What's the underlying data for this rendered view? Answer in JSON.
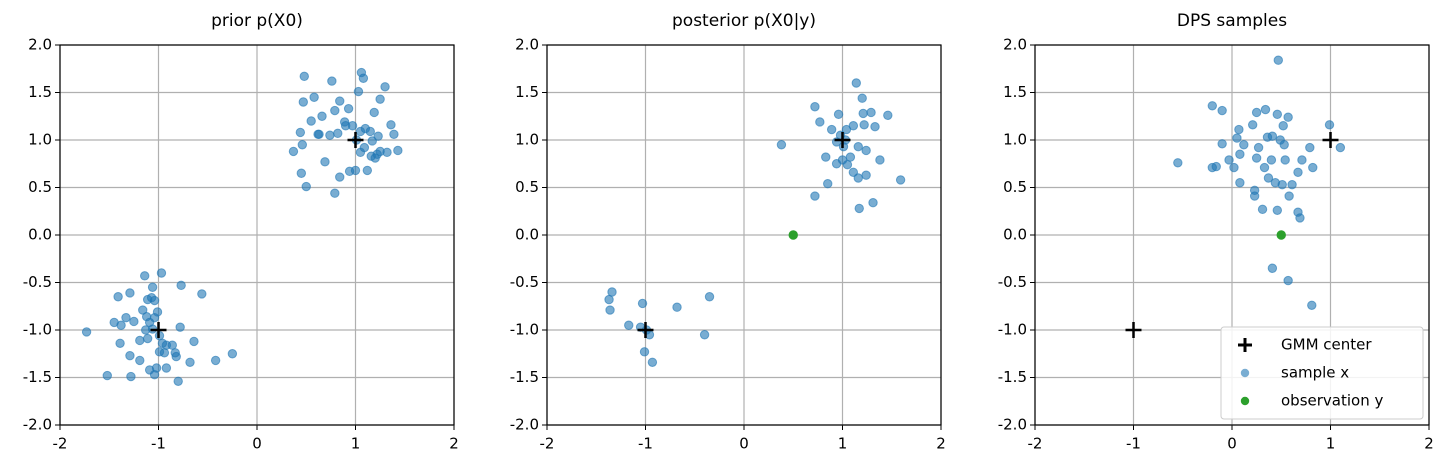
{
  "chart_data": [
    {
      "type": "scatter",
      "title": "prior p(X0)",
      "xlim": [
        -2,
        2
      ],
      "ylim": [
        -2,
        2
      ],
      "xticks": [
        -2,
        -1,
        0,
        1,
        2
      ],
      "yticks": [
        {
          "value": -2,
          "label": "-2.0"
        },
        -1.5,
        {
          "value": -1,
          "label": "-1.0"
        },
        -0.5,
        {
          "value": 0,
          "label": "0.0"
        },
        0.5,
        {
          "value": 1,
          "label": "1.0"
        },
        1.5,
        {
          "value": 2,
          "label": "2.0"
        }
      ],
      "grid": true,
      "series": [
        {
          "color": "#1f77b4",
          "marker": "circle",
          "alpha": 0.6,
          "x": [
            0.48,
            0.47,
            0.58,
            0.76,
            1.06,
            1.08,
            1.3,
            1.25,
            1.03,
            0.84,
            0.93,
            1.19,
            0.44,
            0.55,
            0.66,
            0.79,
            0.9,
            0.82,
            0.74,
            0.63,
            0.89,
            0.97,
            1.05,
            1.1,
            1.15,
            1.23,
            1.17,
            1.36,
            1.39,
            1.43,
            1.32,
            1.22,
            1.09,
            1.01,
            1.05,
            1.16,
            1.25,
            1.2,
            1.12,
            1.0,
            0.94,
            0.84,
            0.79,
            0.69,
            0.45,
            0.5,
            0.37,
            0.46,
            0.62,
            -1.14,
            -0.97,
            -1.41,
            -1.29,
            -1.06,
            -1.07,
            -1.11,
            -1.04,
            -0.77,
            -0.56,
            -1.45,
            -1.33,
            -1.38,
            -1.25,
            -1.16,
            -1.12,
            -1.09,
            -1.13,
            -1.06,
            -0.99,
            -0.78,
            -1.73,
            -1.39,
            -1.19,
            -0.96,
            -0.92,
            -0.99,
            -0.94,
            -0.64,
            -0.82,
            -0.83,
            -0.68,
            -1.19,
            -1.09,
            -1.02,
            -0.92,
            -1.52,
            -1.28,
            -1.04,
            -0.8,
            -0.42,
            -0.25,
            -1.29,
            -1.11,
            -0.86,
            -1.04,
            -1.01
          ],
          "y": [
            1.67,
            1.4,
            1.45,
            1.62,
            1.71,
            1.65,
            1.56,
            1.43,
            1.51,
            1.41,
            1.33,
            1.29,
            1.08,
            1.2,
            1.25,
            1.31,
            1.15,
            1.07,
            1.05,
            1.06,
            1.19,
            1.15,
            1.09,
            1.12,
            1.09,
            1.04,
            0.99,
            1.16,
            1.06,
            0.89,
            0.87,
            0.85,
            0.92,
            1.0,
            0.87,
            0.83,
            0.88,
            0.81,
            0.68,
            0.68,
            0.67,
            0.61,
            0.44,
            0.77,
            0.65,
            0.51,
            0.88,
            0.95,
            1.06,
            -0.43,
            -0.4,
            -0.65,
            -0.61,
            -0.55,
            -0.66,
            -0.68,
            -0.69,
            -0.53,
            -0.62,
            -0.92,
            -0.87,
            -0.95,
            -0.91,
            -0.79,
            -0.86,
            -0.92,
            -1.0,
            -0.99,
            -1.06,
            -0.97,
            -1.02,
            -1.14,
            -1.11,
            -1.14,
            -1.16,
            -1.23,
            -1.24,
            -1.12,
            -1.28,
            -1.24,
            -1.34,
            -1.32,
            -1.42,
            -1.4,
            -1.4,
            -1.48,
            -1.49,
            -1.47,
            -1.54,
            -1.32,
            -1.25,
            -1.27,
            -1.09,
            -1.16,
            -0.87,
            -0.81
          ]
        },
        {
          "color": "#000000",
          "marker": "plus",
          "x": [
            -1,
            1
          ],
          "y": [
            -1,
            1
          ]
        }
      ]
    },
    {
      "type": "scatter",
      "title": "posterior p(X0|y)",
      "xlim": [
        -2,
        2
      ],
      "ylim": [
        -2,
        2
      ],
      "xticks": [
        -2,
        -1,
        0,
        1,
        2
      ],
      "yticks": [
        {
          "value": -2,
          "label": "-2.0"
        },
        -1.5,
        {
          "value": -1,
          "label": "-1.0"
        },
        -0.5,
        {
          "value": 0,
          "label": "0.0"
        },
        0.5,
        {
          "value": 1,
          "label": "1.0"
        },
        1.5,
        {
          "value": 2,
          "label": "2.0"
        }
      ],
      "grid": true,
      "series": [
        {
          "color": "#1f77b4",
          "marker": "circle",
          "alpha": 0.6,
          "x": [
            1.14,
            1.2,
            0.72,
            0.96,
            1.29,
            1.46,
            1.21,
            1.22,
            0.77,
            1.33,
            1.11,
            1.04,
            0.89,
            0.98,
            1.03,
            1.01,
            0.94,
            0.83,
            1.16,
            1.24,
            1.38,
            1.08,
            0.38,
            1.05,
            1.11,
            1.24,
            1.16,
            0.85,
            1.59,
            0.72,
            1.31,
            1.17,
            0.94,
            1.0,
            -1.34,
            -1.37,
            -1.36,
            -1.17,
            -1.03,
            -1.05,
            -0.99,
            -0.96,
            -0.68,
            -0.35,
            -0.4,
            -1.01,
            -0.93
          ],
          "y": [
            1.6,
            1.44,
            1.35,
            1.27,
            1.29,
            1.26,
            1.28,
            1.16,
            1.19,
            1.14,
            1.15,
            1.11,
            1.11,
            1.05,
            1.0,
            0.93,
            0.98,
            0.82,
            0.93,
            0.89,
            0.79,
            0.82,
            0.95,
            0.74,
            0.66,
            0.63,
            0.6,
            0.54,
            0.58,
            0.41,
            0.34,
            0.28,
            0.75,
            0.79,
            -0.6,
            -0.68,
            -0.79,
            -0.95,
            -0.72,
            -0.97,
            -1.0,
            -1.05,
            -0.76,
            -0.65,
            -1.05,
            -1.23,
            -1.34
          ]
        },
        {
          "color": "#000000",
          "marker": "plus",
          "x": [
            -1,
            1
          ],
          "y": [
            -1,
            1
          ]
        },
        {
          "color": "#2ca02c",
          "marker": "circle",
          "alpha": 1,
          "x": [
            0.5
          ],
          "y": [
            0
          ]
        }
      ]
    },
    {
      "type": "scatter",
      "title": "DPS samples",
      "xlim": [
        -2,
        2
      ],
      "ylim": [
        -2,
        2
      ],
      "xticks": [
        -2,
        -1,
        0,
        1,
        2
      ],
      "yticks": [
        {
          "value": -2,
          "label": "-2.0"
        },
        -1.5,
        {
          "value": -1,
          "label": "-1.0"
        },
        -0.5,
        {
          "value": 0,
          "label": "0.0"
        },
        0.5,
        {
          "value": 1,
          "label": "1.0"
        },
        1.5,
        {
          "value": 2,
          "label": "2.0"
        }
      ],
      "grid": true,
      "legend": "lower right",
      "series": [
        {
          "name": "GMM center",
          "color": "#000000",
          "marker": "plus",
          "x": [
            -1,
            1
          ],
          "y": [
            -1,
            1
          ]
        },
        {
          "name": "sample x",
          "color": "#1f77b4",
          "marker": "circle",
          "alpha": 0.6,
          "x": [
            0.47,
            -0.2,
            -0.1,
            0.25,
            0.34,
            0.46,
            0.21,
            0.57,
            0.99,
            0.07,
            0.52,
            0.41,
            0.36,
            0.05,
            -0.1,
            0.12,
            0.27,
            0.53,
            0.79,
            0.08,
            -0.03,
            0.25,
            0.4,
            0.54,
            0.71,
            1.1,
            -0.16,
            -0.2,
            0.02,
            0.33,
            0.82,
            0.67,
            -0.55,
            0.37,
            0.08,
            0.44,
            0.51,
            0.61,
            0.23,
            0.23,
            0.58,
            0.31,
            0.46,
            0.67,
            0.69,
            0.41,
            0.57,
            0.81,
            0.49
          ],
          "y": [
            1.84,
            1.36,
            1.31,
            1.29,
            1.32,
            1.27,
            1.16,
            1.24,
            1.16,
            1.11,
            1.15,
            1.04,
            1.03,
            1.02,
            0.96,
            0.95,
            0.92,
            0.95,
            0.92,
            0.85,
            0.79,
            0.81,
            0.79,
            0.79,
            0.79,
            0.92,
            0.72,
            0.71,
            0.71,
            0.71,
            0.71,
            0.66,
            0.76,
            0.6,
            0.55,
            0.55,
            0.53,
            0.53,
            0.47,
            0.41,
            0.41,
            0.27,
            0.26,
            0.24,
            0.18,
            -0.35,
            -0.48,
            -0.74,
            1.0
          ]
        },
        {
          "name": "observation y",
          "color": "#2ca02c",
          "marker": "circle",
          "alpha": 1,
          "x": [
            0.5
          ],
          "y": [
            0
          ]
        }
      ]
    }
  ]
}
